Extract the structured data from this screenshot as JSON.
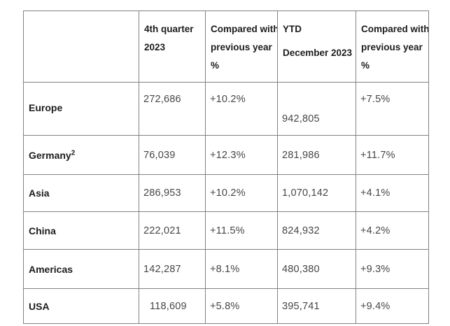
{
  "colors": {
    "background": "#ffffff",
    "border": "#828282",
    "heading_text": "#1c1c1c",
    "value_text": "#474747"
  },
  "table": {
    "headers": [
      {
        "lines": []
      },
      {
        "lines": [
          "4th quarter",
          "2023"
        ]
      },
      {
        "lines": [
          "Compared with",
          "previous year",
          "%"
        ]
      },
      {
        "lines": [
          "YTD",
          "December 2023"
        ]
      },
      {
        "lines": [
          "Compared with",
          "previous year",
          "%"
        ]
      }
    ],
    "rows": [
      {
        "region": {
          "label": "Europe",
          "sup": ""
        },
        "values": [
          "272,686",
          "+10.2%",
          "942,805",
          "+7.5%"
        ]
      },
      {
        "region": {
          "label": "Germany",
          "sup": "2"
        },
        "values": [
          "76,039",
          "+12.3%",
          "281,986",
          "+11.7%"
        ]
      },
      {
        "region": {
          "label": "Asia",
          "sup": ""
        },
        "values": [
          "286,953",
          "+10.2%",
          "1,070,142",
          "+4.1%"
        ]
      },
      {
        "region": {
          "label": "China",
          "sup": ""
        },
        "values": [
          "222,021",
          "+11.5%",
          "824,932",
          "+4.2%"
        ]
      },
      {
        "region": {
          "label": "Americas",
          "sup": ""
        },
        "values": [
          "142,287",
          "+8.1%",
          "480,380",
          "+9.3%"
        ]
      },
      {
        "region": {
          "label": "USA",
          "sup": ""
        },
        "values": [
          "118,609",
          "+5.8%",
          "395,741",
          "+9.4%"
        ]
      }
    ]
  }
}
